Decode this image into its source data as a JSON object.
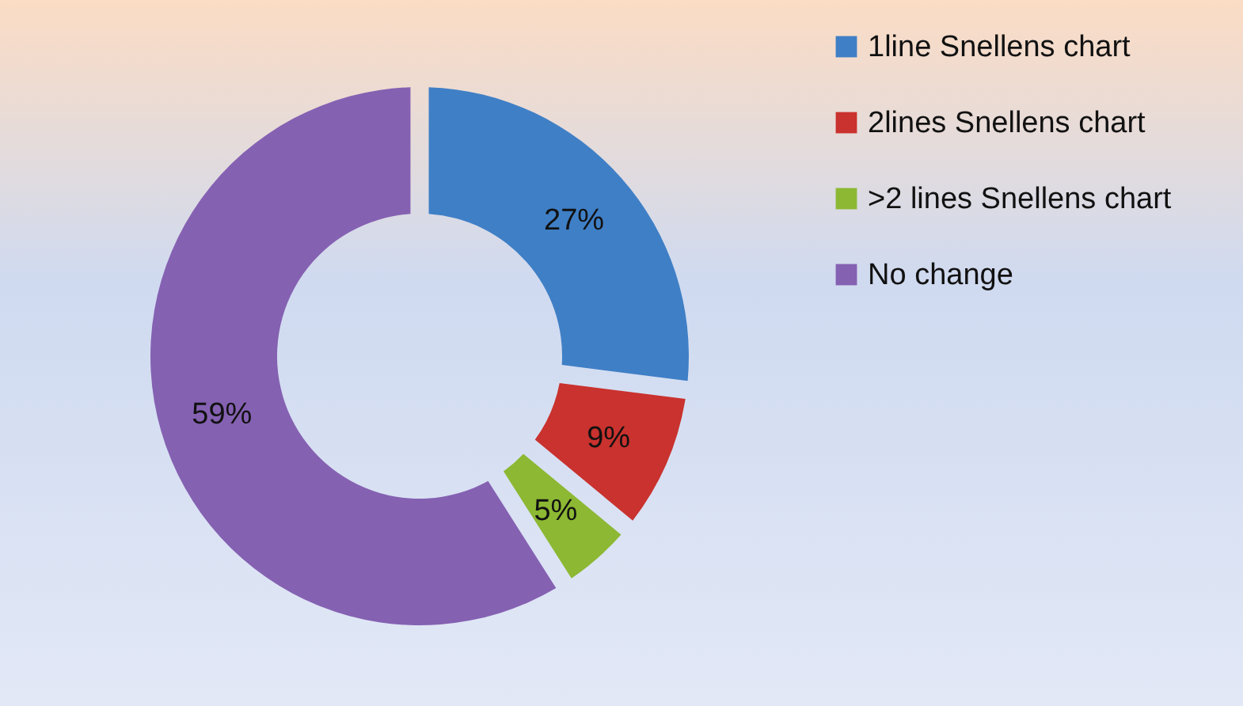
{
  "chart_data": {
    "type": "donut",
    "categories": [
      "1line Snellens chart",
      "2lines Snellens chart",
      ">2 lines Snellens chart",
      "No change"
    ],
    "values": [
      27,
      9,
      5,
      59
    ],
    "colors": [
      "#3f7fc6",
      "#c9322e",
      "#8cb833",
      "#8561b2"
    ],
    "value_labels": [
      "27%",
      "9%",
      "5%",
      "59%"
    ],
    "legend": "right"
  }
}
